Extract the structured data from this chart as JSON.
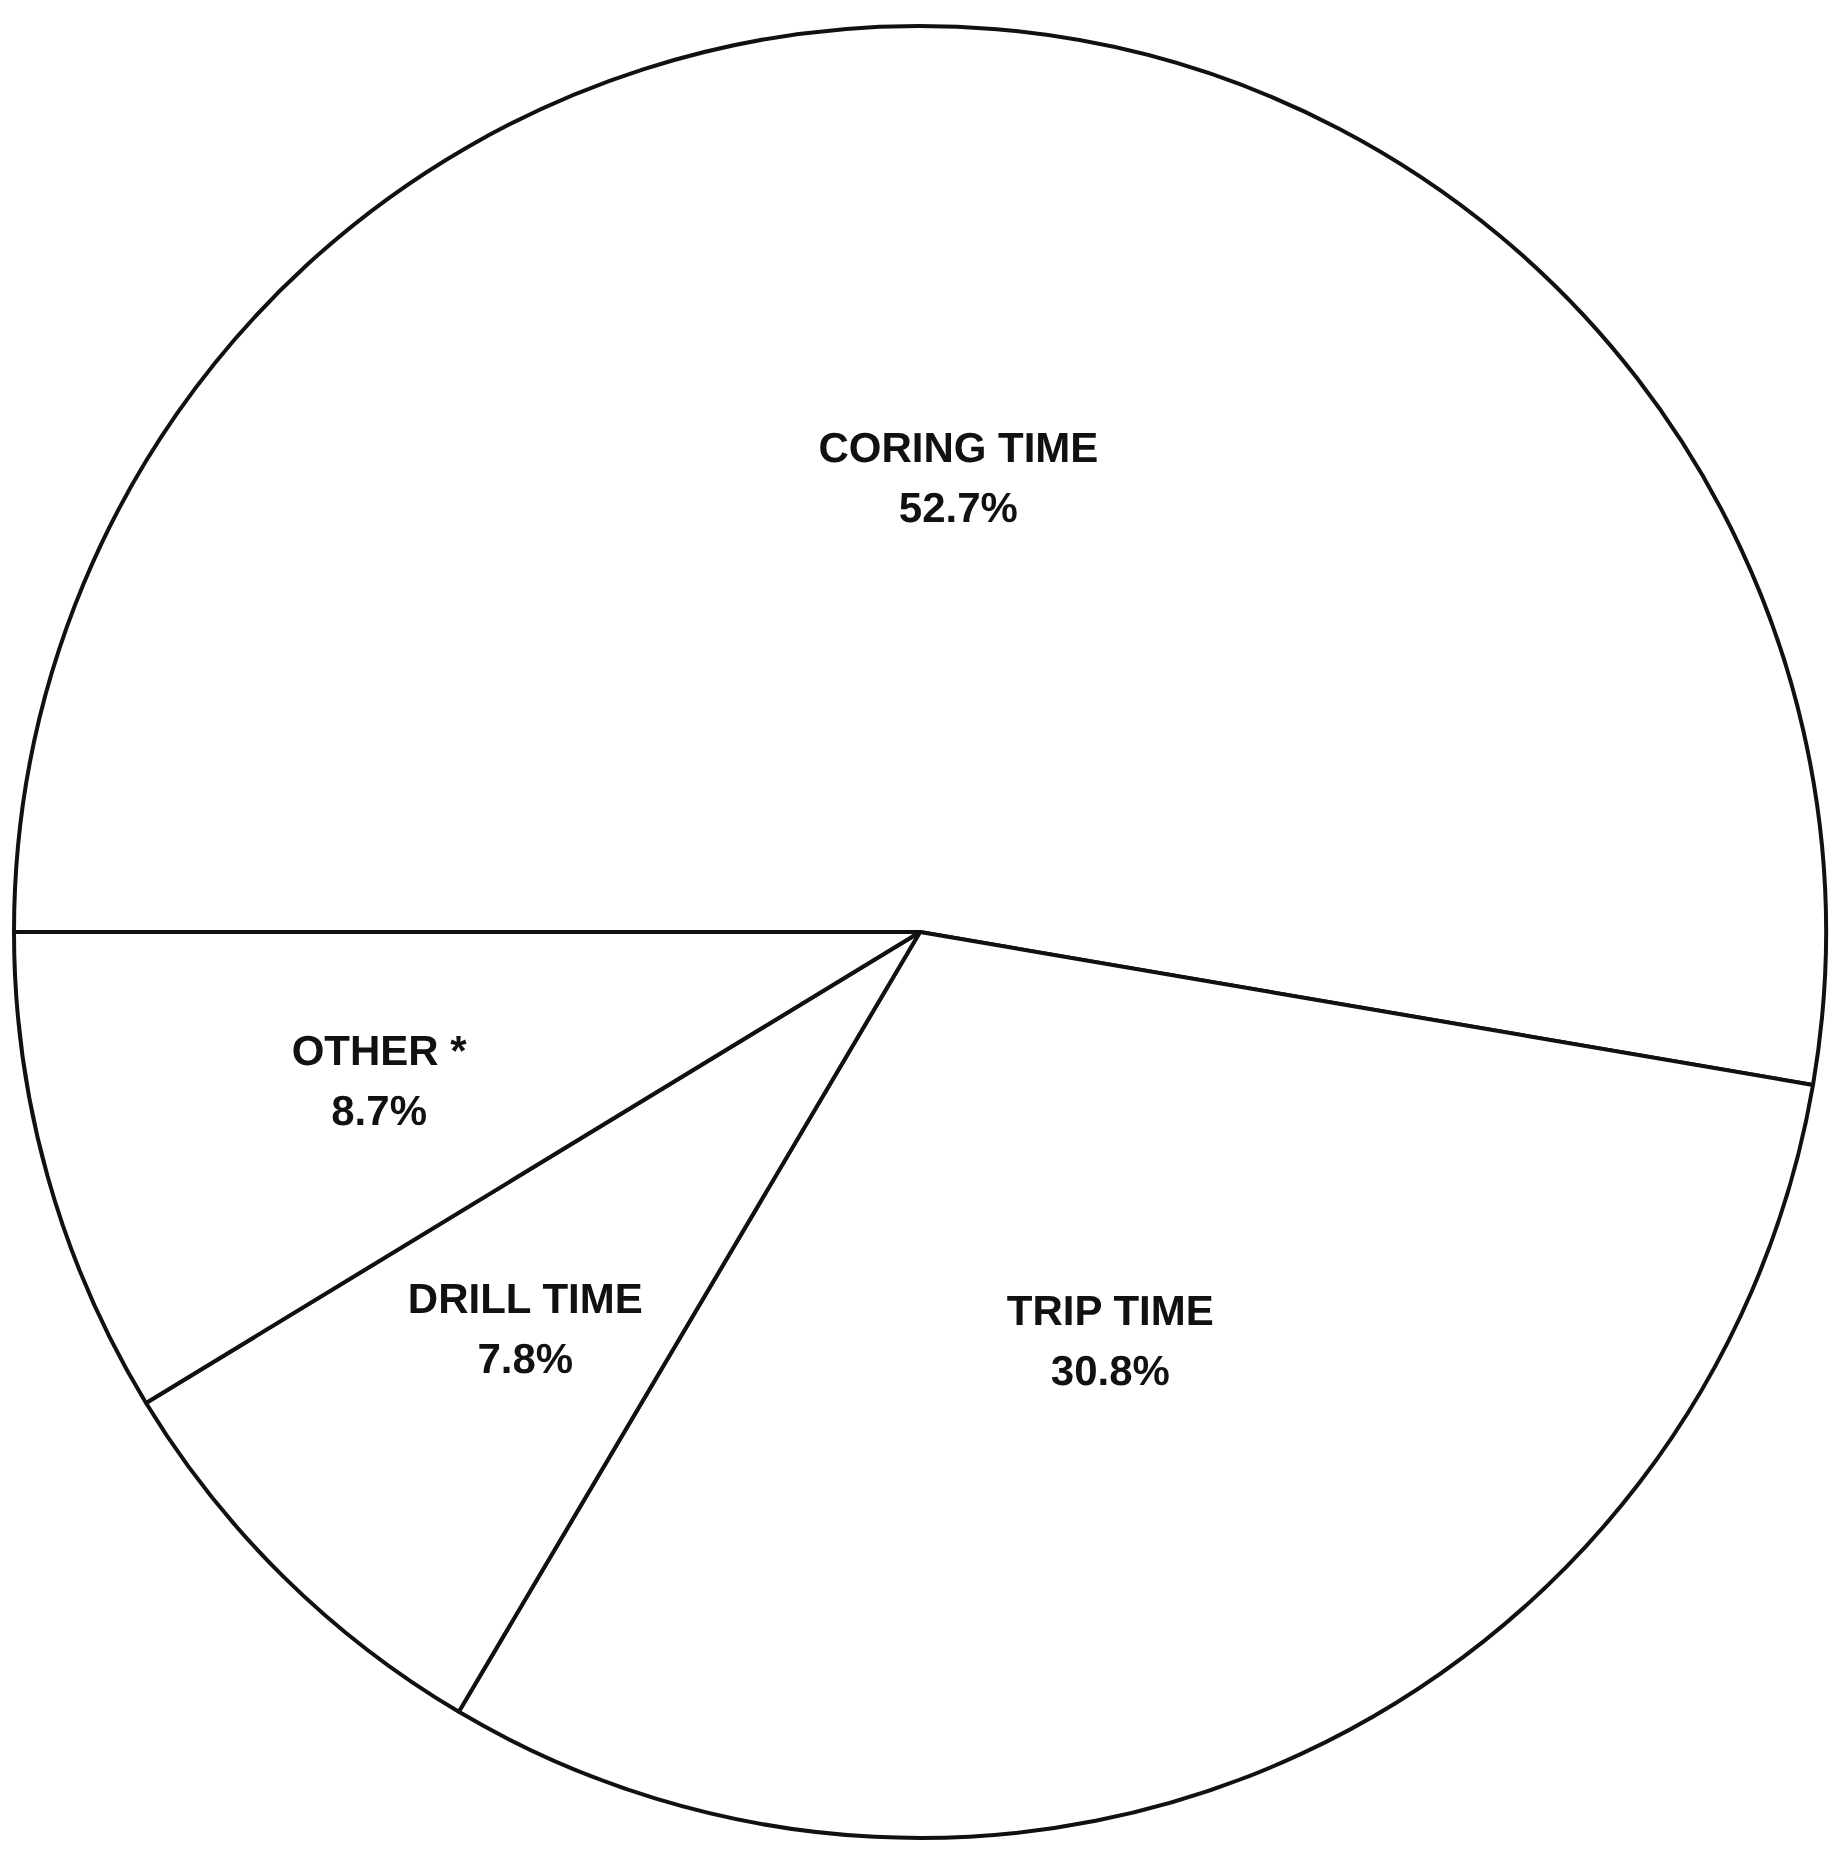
{
  "chart_data": {
    "type": "pie",
    "categories": [
      "CORING TIME",
      "TRIP TIME",
      "DRILL TIME",
      "OTHER *"
    ],
    "values": [
      52.7,
      30.8,
      7.8,
      8.7
    ],
    "colors": [
      "#ffffff",
      "#ffffff",
      "#ffffff",
      "#ffffff"
    ],
    "value_labels": [
      "52.7%",
      "30.8%",
      "7.8%",
      "8.7%"
    ],
    "legend": false
  }
}
